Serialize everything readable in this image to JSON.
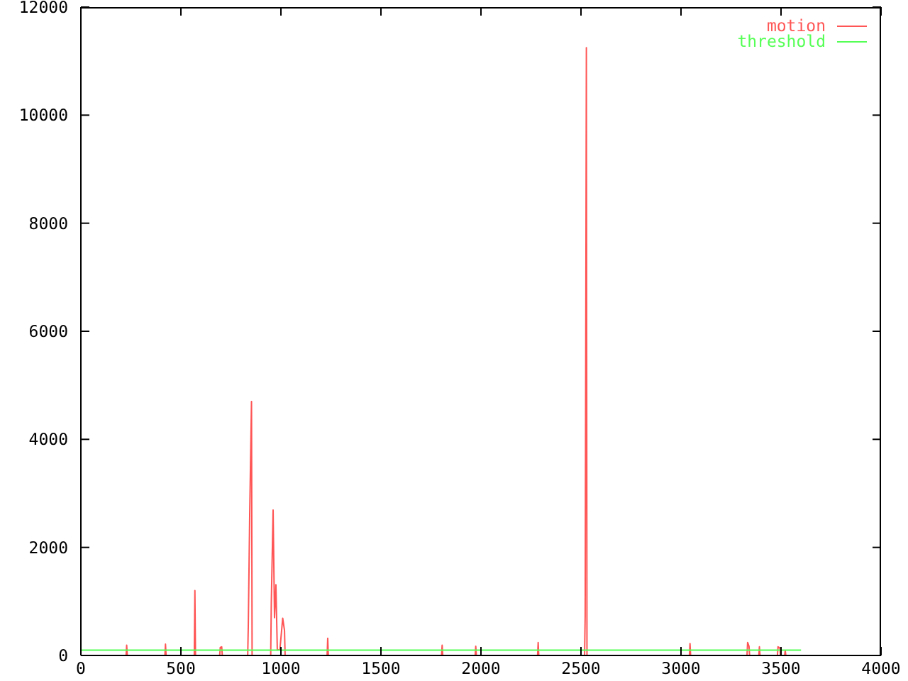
{
  "chart_data": {
    "type": "line",
    "xlim": [
      0,
      4000
    ],
    "xticks": [
      0,
      500,
      1000,
      1500,
      2000,
      2500,
      3000,
      3500,
      4000
    ],
    "ylim": [
      0,
      12000
    ],
    "yticks": [
      0,
      2000,
      4000,
      6000,
      8000,
      10000,
      12000
    ],
    "grid": false,
    "legend": "top right",
    "line_style": "solid",
    "series": [
      {
        "name": "motion",
        "color": "#ff5555",
        "x": [
          0,
          226,
          229,
          232,
          420,
          423,
          426,
          567,
          570,
          573,
          694,
          697,
          704,
          707,
          834,
          837,
          844,
          853,
          856,
          949,
          952,
          961,
          968,
          975,
          982,
          995,
          1009,
          1018,
          1021,
          1231,
          1234,
          1237,
          1803,
          1806,
          1809,
          1971,
          1974,
          1977,
          2283,
          2286,
          2289,
          2518,
          2521,
          2527,
          2530,
          3042,
          3045,
          3048,
          3330,
          3333,
          3340,
          3343,
          3389,
          3392,
          3395,
          3482,
          3485,
          3494,
          3497,
          3518,
          3521,
          3524,
          3600
        ],
        "values": [
          0,
          0,
          190,
          0,
          0,
          210,
          0,
          0,
          1200,
          0,
          0,
          150,
          160,
          0,
          0,
          560,
          2600,
          4700,
          0,
          0,
          980,
          2690,
          700,
          1310,
          100,
          110,
          690,
          460,
          0,
          0,
          320,
          0,
          0,
          190,
          0,
          0,
          170,
          0,
          0,
          240,
          0,
          0,
          740,
          11250,
          0,
          0,
          220,
          0,
          0,
          240,
          170,
          0,
          0,
          160,
          0,
          0,
          160,
          140,
          0,
          0,
          90,
          0,
          0
        ]
      },
      {
        "name": "threshold",
        "color": "#55ff55",
        "x": [
          0,
          3600
        ],
        "values": [
          100,
          100
        ]
      }
    ]
  }
}
